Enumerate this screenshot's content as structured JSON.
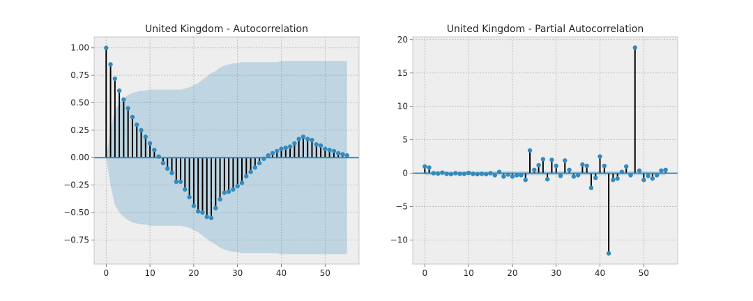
{
  "chart_data": [
    {
      "type": "stem",
      "title": "United Kingdom - Autocorrelation",
      "xlabel": "",
      "ylabel": "",
      "xlim": [
        -2.75,
        57.75
      ],
      "ylim": [
        -0.97,
        1.1
      ],
      "xticks": [
        0,
        10,
        20,
        30,
        40,
        50
      ],
      "yticks": [
        -0.75,
        -0.5,
        -0.25,
        0.0,
        0.25,
        0.5,
        0.75,
        1.0
      ],
      "ytick_labels": [
        "−0.75",
        "−0.50",
        "−0.25",
        "0.00",
        "0.25",
        "0.50",
        "0.75",
        "1.00"
      ],
      "grid": true,
      "x": [
        0,
        1,
        2,
        3,
        4,
        5,
        6,
        7,
        8,
        9,
        10,
        11,
        12,
        13,
        14,
        15,
        16,
        17,
        18,
        19,
        20,
        21,
        22,
        23,
        24,
        25,
        26,
        27,
        28,
        29,
        30,
        31,
        32,
        33,
        34,
        35,
        36,
        37,
        38,
        39,
        40,
        41,
        42,
        43,
        44,
        45,
        46,
        47,
        48,
        49,
        50,
        51,
        52,
        53,
        54,
        55
      ],
      "values": [
        1.0,
        0.85,
        0.72,
        0.61,
        0.53,
        0.45,
        0.37,
        0.3,
        0.25,
        0.19,
        0.13,
        0.07,
        0.01,
        -0.05,
        -0.1,
        -0.14,
        -0.22,
        -0.22,
        -0.29,
        -0.36,
        -0.44,
        -0.49,
        -0.5,
        -0.54,
        -0.55,
        -0.46,
        -0.38,
        -0.32,
        -0.31,
        -0.29,
        -0.26,
        -0.23,
        -0.17,
        -0.13,
        -0.09,
        -0.05,
        -0.01,
        0.02,
        0.04,
        0.06,
        0.08,
        0.09,
        0.1,
        0.13,
        0.17,
        0.19,
        0.17,
        0.16,
        0.12,
        0.11,
        0.08,
        0.07,
        0.06,
        0.04,
        0.03,
        0.02
      ],
      "confidence_band_upper": [
        0.0,
        0.25,
        0.43,
        0.5,
        0.54,
        0.57,
        0.59,
        0.6,
        0.61,
        0.61,
        0.62,
        0.62,
        0.62,
        0.62,
        0.62,
        0.62,
        0.62,
        0.62,
        0.63,
        0.64,
        0.66,
        0.68,
        0.71,
        0.74,
        0.77,
        0.79,
        0.82,
        0.84,
        0.85,
        0.86,
        0.86,
        0.87,
        0.87,
        0.87,
        0.87,
        0.87,
        0.87,
        0.87,
        0.87,
        0.87,
        0.88,
        0.88,
        0.88,
        0.88,
        0.88,
        0.88,
        0.88,
        0.88,
        0.88,
        0.88,
        0.88,
        0.88,
        0.88,
        0.88,
        0.88,
        0.88
      ],
      "confidence_band_lower": [
        0.0,
        -0.25,
        -0.43,
        -0.5,
        -0.54,
        -0.57,
        -0.59,
        -0.6,
        -0.61,
        -0.61,
        -0.62,
        -0.62,
        -0.62,
        -0.62,
        -0.62,
        -0.62,
        -0.62,
        -0.62,
        -0.63,
        -0.64,
        -0.66,
        -0.68,
        -0.71,
        -0.74,
        -0.77,
        -0.79,
        -0.82,
        -0.84,
        -0.85,
        -0.86,
        -0.86,
        -0.87,
        -0.87,
        -0.87,
        -0.87,
        -0.87,
        -0.87,
        -0.87,
        -0.87,
        -0.87,
        -0.88,
        -0.88,
        -0.88,
        -0.88,
        -0.88,
        -0.88,
        -0.88,
        -0.88,
        -0.88,
        -0.88,
        -0.88,
        -0.88,
        -0.88,
        -0.88,
        -0.88,
        -0.88
      ]
    },
    {
      "type": "stem",
      "title": "United Kingdom - Partial Autocorrelation",
      "xlabel": "",
      "ylabel": "",
      "xlim": [
        -2.75,
        57.75
      ],
      "ylim": [
        -13.6,
        20.4
      ],
      "xticks": [
        0,
        10,
        20,
        30,
        40,
        50
      ],
      "yticks": [
        -10,
        -5,
        0,
        5,
        10,
        15,
        20
      ],
      "ytick_labels": [
        "−10",
        "−5",
        "0",
        "5",
        "10",
        "15",
        "20"
      ],
      "grid": true,
      "x": [
        0,
        1,
        2,
        3,
        4,
        5,
        6,
        7,
        8,
        9,
        10,
        11,
        12,
        13,
        14,
        15,
        16,
        17,
        18,
        19,
        20,
        21,
        22,
        23,
        24,
        25,
        26,
        27,
        28,
        29,
        30,
        31,
        32,
        33,
        34,
        35,
        36,
        37,
        38,
        39,
        40,
        41,
        42,
        43,
        44,
        45,
        46,
        47,
        48,
        49,
        50,
        51,
        52,
        53,
        54,
        55
      ],
      "values": [
        1.0,
        0.85,
        0.0,
        -0.05,
        0.1,
        -0.1,
        -0.15,
        0.0,
        -0.1,
        -0.1,
        0.05,
        -0.1,
        -0.15,
        -0.1,
        -0.15,
        0.0,
        -0.3,
        0.2,
        -0.5,
        -0.2,
        -0.5,
        -0.3,
        -0.3,
        -1.0,
        3.4,
        0.5,
        1.2,
        2.1,
        -0.9,
        2.0,
        1.1,
        -0.4,
        1.9,
        0.5,
        -0.5,
        -0.3,
        1.3,
        1.1,
        -2.2,
        -0.7,
        2.5,
        1.1,
        -12.0,
        -1.0,
        -0.8,
        0.2,
        1.0,
        -0.3,
        18.8,
        0.4,
        -1.0,
        -0.4,
        -0.8,
        -0.3,
        0.4,
        0.5
      ],
      "confidence_band": 0.3
    }
  ]
}
